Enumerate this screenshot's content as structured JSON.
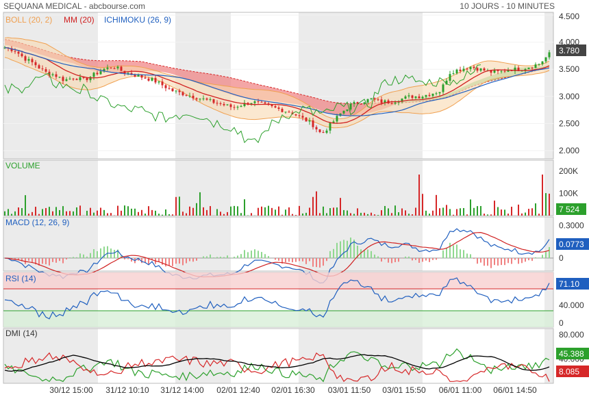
{
  "header": {
    "title": "SEQUANA MEDICAL - abcbourse.com",
    "period": "10 JOURS - 10 MINUTES"
  },
  "x_labels": [
    "30/12 15:00",
    "31/12 10:10",
    "31/12 14:00",
    "02/01 12:40",
    "02/01 16:30",
    "03/01 11:50",
    "03/01 15:50",
    "06/01 11:00",
    "06/01 14:50"
  ],
  "colors": {
    "boll": "#f0a050",
    "mm": "#d02020",
    "ichimoku": "#1f5fbf",
    "volume": "#2ca02c",
    "up": "#2ca02c",
    "down": "#d62728",
    "macd": "#1f5fbf",
    "rsi": "#1f5fbf",
    "dmi_plus": "#2ca02c",
    "dmi_minus": "#d62728",
    "adx": "#000000"
  },
  "chart_data": [
    {
      "name": "price",
      "type": "line",
      "legend": [
        {
          "label": "BOLL (20, 2)",
          "color": "#f0a050"
        },
        {
          "label": "MM (20)",
          "color": "#d02020"
        },
        {
          "label": "ICHIMOKU (26, 9)",
          "color": "#1f5fbf"
        }
      ],
      "yticks": [
        "2.000",
        "2.500",
        "3.000",
        "3.500",
        "4.000",
        "4.500"
      ],
      "ylim": [
        1.85,
        4.55
      ],
      "last_value": "3.780",
      "close_series": [
        3.9,
        3.85,
        3.7,
        3.6,
        3.45,
        3.4,
        3.3,
        3.35,
        3.3,
        3.4,
        3.5,
        3.55,
        3.45,
        3.4,
        3.35,
        3.3,
        3.2,
        3.1,
        3.05,
        3.0,
        2.95,
        2.9,
        2.85,
        2.8,
        2.85,
        2.9,
        2.85,
        2.8,
        2.75,
        2.7,
        2.6,
        2.5,
        2.3,
        2.5,
        2.7,
        2.85,
        2.9,
        2.95,
        2.9,
        2.9,
        2.95,
        3.0,
        3.0,
        3.05,
        3.1,
        3.45,
        3.5,
        3.55,
        3.5,
        3.45,
        3.45,
        3.5,
        3.5,
        3.55,
        3.6,
        3.78
      ]
    },
    {
      "name": "volume",
      "type": "bar",
      "title": "VOLUME",
      "yticks": [
        "100K",
        "200K"
      ],
      "ylim": [
        0,
        250000
      ],
      "last_value": "7 524"
    },
    {
      "name": "macd",
      "type": "line",
      "title": "MACD (12, 26, 9)",
      "yticks": [
        "0",
        "0.3000"
      ],
      "ylim": [
        -0.12,
        0.38
      ],
      "last_value": "0.0773"
    },
    {
      "name": "rsi",
      "type": "line",
      "title": "RSI (14)",
      "yticks": [
        "0",
        "40.000"
      ],
      "ylim": [
        0,
        100
      ],
      "last_value": "71.10"
    },
    {
      "name": "dmi",
      "type": "line",
      "title": "DMI (14)",
      "yticks": [
        "40.000",
        "80.000"
      ],
      "ylim": [
        0,
        90
      ],
      "last_value_plus": "45.388",
      "last_value_minus": "8.085"
    }
  ]
}
